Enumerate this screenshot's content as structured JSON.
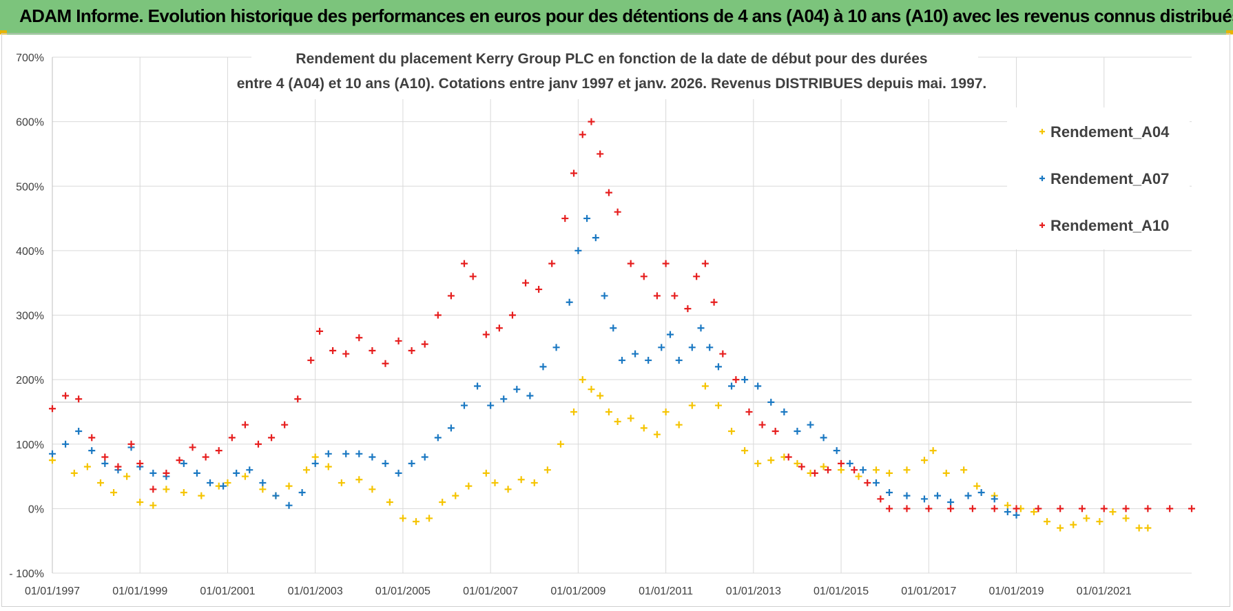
{
  "banner": {
    "title": "ADAM Informe. Evolution historique des performances en euros pour des détentions de 4 ans (A04) à 10 ans (A10) avec les revenus connus distribués"
  },
  "chart_data": {
    "type": "scatter",
    "title_line1": "Rendement du placement Kerry Group PLC en fonction de la date de début pour des durées",
    "title_line2": "entre 4 (A04) et 10 ans (A10).  Cotations entre janv 1997 et janv. 2026. Revenus DISTRIBUES depuis mai. 1997.",
    "ylim": [
      -100,
      700
    ],
    "xlim": [
      1997.0,
      2023.0
    ],
    "y_ticks": [
      {
        "value": 700,
        "label": "700%"
      },
      {
        "value": 600,
        "label": "600%"
      },
      {
        "value": 500,
        "label": "500%"
      },
      {
        "value": 400,
        "label": "400%"
      },
      {
        "value": 300,
        "label": "300%"
      },
      {
        "value": 200,
        "label": "200%"
      },
      {
        "value": 100,
        "label": "100%"
      },
      {
        "value": 0,
        "label": "0%"
      },
      {
        "value": -100,
        "label": "- 100%"
      }
    ],
    "x_ticks": [
      {
        "value": 1997,
        "label": "01/01/1997"
      },
      {
        "value": 1999,
        "label": "01/01/1999"
      },
      {
        "value": 2001,
        "label": "01/01/2001"
      },
      {
        "value": 2003,
        "label": "01/01/2003"
      },
      {
        "value": 2005,
        "label": "01/01/2005"
      },
      {
        "value": 2007,
        "label": "01/01/2007"
      },
      {
        "value": 2009,
        "label": "01/01/2009"
      },
      {
        "value": 2011,
        "label": "01/01/2011"
      },
      {
        "value": 2013,
        "label": "01/01/2013"
      },
      {
        "value": 2015,
        "label": "01/01/2015"
      },
      {
        "value": 2017,
        "label": "01/01/2017"
      },
      {
        "value": 2019,
        "label": "01/01/2019"
      },
      {
        "value": 2021,
        "label": "01/01/2021"
      }
    ],
    "legend_position": "top-right",
    "series": [
      {
        "name": "Rendement_A04",
        "color": "#f5c400",
        "points": [
          [
            1997.0,
            75
          ],
          [
            1997.5,
            55
          ],
          [
            1997.8,
            65
          ],
          [
            1998.1,
            40
          ],
          [
            1998.4,
            25
          ],
          [
            1998.7,
            50
          ],
          [
            1999.0,
            10
          ],
          [
            1999.3,
            5
          ],
          [
            1999.6,
            30
          ],
          [
            2000.0,
            25
          ],
          [
            2000.4,
            20
          ],
          [
            2000.8,
            35
          ],
          [
            2001.0,
            40
          ],
          [
            2001.4,
            50
          ],
          [
            2001.8,
            30
          ],
          [
            2002.1,
            20
          ],
          [
            2002.4,
            35
          ],
          [
            2002.8,
            60
          ],
          [
            2003.0,
            80
          ],
          [
            2003.3,
            65
          ],
          [
            2003.6,
            40
          ],
          [
            2004.0,
            45
          ],
          [
            2004.3,
            30
          ],
          [
            2004.7,
            10
          ],
          [
            2005.0,
            -15
          ],
          [
            2005.3,
            -20
          ],
          [
            2005.6,
            -15
          ],
          [
            2005.9,
            10
          ],
          [
            2006.2,
            20
          ],
          [
            2006.5,
            35
          ],
          [
            2006.9,
            55
          ],
          [
            2007.1,
            40
          ],
          [
            2007.4,
            30
          ],
          [
            2007.7,
            45
          ],
          [
            2008.0,
            40
          ],
          [
            2008.3,
            60
          ],
          [
            2008.6,
            100
          ],
          [
            2008.9,
            150
          ],
          [
            2009.1,
            200
          ],
          [
            2009.3,
            185
          ],
          [
            2009.5,
            175
          ],
          [
            2009.7,
            150
          ],
          [
            2009.9,
            135
          ],
          [
            2010.2,
            140
          ],
          [
            2010.5,
            125
          ],
          [
            2010.8,
            115
          ],
          [
            2011.0,
            150
          ],
          [
            2011.3,
            130
          ],
          [
            2011.6,
            160
          ],
          [
            2011.9,
            190
          ],
          [
            2012.2,
            160
          ],
          [
            2012.5,
            120
          ],
          [
            2012.8,
            90
          ],
          [
            2013.1,
            70
          ],
          [
            2013.4,
            75
          ],
          [
            2013.7,
            80
          ],
          [
            2014.0,
            70
          ],
          [
            2014.3,
            55
          ],
          [
            2014.6,
            65
          ],
          [
            2015.0,
            60
          ],
          [
            2015.4,
            50
          ],
          [
            2015.8,
            60
          ],
          [
            2016.1,
            55
          ],
          [
            2016.5,
            60
          ],
          [
            2016.9,
            75
          ],
          [
            2017.1,
            90
          ],
          [
            2017.4,
            55
          ],
          [
            2017.8,
            60
          ],
          [
            2018.1,
            35
          ],
          [
            2018.5,
            20
          ],
          [
            2018.8,
            5
          ],
          [
            2019.1,
            0
          ],
          [
            2019.4,
            -5
          ],
          [
            2019.7,
            -20
          ],
          [
            2020.0,
            -30
          ],
          [
            2020.3,
            -25
          ],
          [
            2020.6,
            -15
          ],
          [
            2020.9,
            -20
          ],
          [
            2021.2,
            -5
          ],
          [
            2021.5,
            -15
          ],
          [
            2021.8,
            -30
          ],
          [
            2022.0,
            -30
          ]
        ]
      },
      {
        "name": "Rendement_A07",
        "color": "#1a78c2",
        "points": [
          [
            1997.0,
            85
          ],
          [
            1997.3,
            100
          ],
          [
            1997.6,
            120
          ],
          [
            1997.9,
            90
          ],
          [
            1998.2,
            70
          ],
          [
            1998.5,
            60
          ],
          [
            1998.8,
            95
          ],
          [
            1999.0,
            65
          ],
          [
            1999.3,
            55
          ],
          [
            1999.6,
            50
          ],
          [
            2000.0,
            70
          ],
          [
            2000.3,
            55
          ],
          [
            2000.6,
            40
          ],
          [
            2000.9,
            35
          ],
          [
            2001.2,
            55
          ],
          [
            2001.5,
            60
          ],
          [
            2001.8,
            40
          ],
          [
            2002.1,
            20
          ],
          [
            2002.4,
            5
          ],
          [
            2002.7,
            25
          ],
          [
            2003.0,
            70
          ],
          [
            2003.3,
            85
          ],
          [
            2003.7,
            85
          ],
          [
            2004.0,
            85
          ],
          [
            2004.3,
            80
          ],
          [
            2004.6,
            70
          ],
          [
            2004.9,
            55
          ],
          [
            2005.2,
            70
          ],
          [
            2005.5,
            80
          ],
          [
            2005.8,
            110
          ],
          [
            2006.1,
            125
          ],
          [
            2006.4,
            160
          ],
          [
            2006.7,
            190
          ],
          [
            2007.0,
            160
          ],
          [
            2007.3,
            170
          ],
          [
            2007.6,
            185
          ],
          [
            2007.9,
            175
          ],
          [
            2008.2,
            220
          ],
          [
            2008.5,
            250
          ],
          [
            2008.8,
            320
          ],
          [
            2009.0,
            400
          ],
          [
            2009.2,
            450
          ],
          [
            2009.4,
            420
          ],
          [
            2009.6,
            330
          ],
          [
            2009.8,
            280
          ],
          [
            2010.0,
            230
          ],
          [
            2010.3,
            240
          ],
          [
            2010.6,
            230
          ],
          [
            2010.9,
            250
          ],
          [
            2011.1,
            270
          ],
          [
            2011.3,
            230
          ],
          [
            2011.6,
            250
          ],
          [
            2011.8,
            280
          ],
          [
            2012.0,
            250
          ],
          [
            2012.2,
            220
          ],
          [
            2012.5,
            190
          ],
          [
            2012.8,
            200
          ],
          [
            2013.1,
            190
          ],
          [
            2013.4,
            165
          ],
          [
            2013.7,
            150
          ],
          [
            2014.0,
            120
          ],
          [
            2014.3,
            130
          ],
          [
            2014.6,
            110
          ],
          [
            2014.9,
            90
          ],
          [
            2015.2,
            70
          ],
          [
            2015.5,
            60
          ],
          [
            2015.8,
            40
          ],
          [
            2016.1,
            25
          ],
          [
            2016.5,
            20
          ],
          [
            2016.9,
            15
          ],
          [
            2017.2,
            20
          ],
          [
            2017.5,
            10
          ],
          [
            2017.9,
            20
          ],
          [
            2018.2,
            25
          ],
          [
            2018.5,
            15
          ],
          [
            2018.8,
            -5
          ],
          [
            2019.0,
            -10
          ]
        ]
      },
      {
        "name": "Rendement_A10",
        "color": "#e61e1e",
        "points": [
          [
            1997.0,
            155
          ],
          [
            1997.3,
            175
          ],
          [
            1997.6,
            170
          ],
          [
            1997.9,
            110
          ],
          [
            1998.2,
            80
          ],
          [
            1998.5,
            65
          ],
          [
            1998.8,
            100
          ],
          [
            1999.0,
            70
          ],
          [
            1999.3,
            30
          ],
          [
            1999.6,
            55
          ],
          [
            1999.9,
            75
          ],
          [
            2000.2,
            95
          ],
          [
            2000.5,
            80
          ],
          [
            2000.8,
            90
          ],
          [
            2001.1,
            110
          ],
          [
            2001.4,
            130
          ],
          [
            2001.7,
            100
          ],
          [
            2002.0,
            110
          ],
          [
            2002.3,
            130
          ],
          [
            2002.6,
            170
          ],
          [
            2002.9,
            230
          ],
          [
            2003.1,
            275
          ],
          [
            2003.4,
            245
          ],
          [
            2003.7,
            240
          ],
          [
            2004.0,
            265
          ],
          [
            2004.3,
            245
          ],
          [
            2004.6,
            225
          ],
          [
            2004.9,
            260
          ],
          [
            2005.2,
            245
          ],
          [
            2005.5,
            255
          ],
          [
            2005.8,
            300
          ],
          [
            2006.1,
            330
          ],
          [
            2006.4,
            380
          ],
          [
            2006.6,
            360
          ],
          [
            2006.9,
            270
          ],
          [
            2007.2,
            280
          ],
          [
            2007.5,
            300
          ],
          [
            2007.8,
            350
          ],
          [
            2008.1,
            340
          ],
          [
            2008.4,
            380
          ],
          [
            2008.7,
            450
          ],
          [
            2008.9,
            520
          ],
          [
            2009.1,
            580
          ],
          [
            2009.3,
            600
          ],
          [
            2009.5,
            550
          ],
          [
            2009.7,
            490
          ],
          [
            2009.9,
            460
          ],
          [
            2010.2,
            380
          ],
          [
            2010.5,
            360
          ],
          [
            2010.8,
            330
          ],
          [
            2011.0,
            380
          ],
          [
            2011.2,
            330
          ],
          [
            2011.5,
            310
          ],
          [
            2011.7,
            360
          ],
          [
            2011.9,
            380
          ],
          [
            2012.1,
            320
          ],
          [
            2012.3,
            240
          ],
          [
            2012.6,
            200
          ],
          [
            2012.9,
            150
          ],
          [
            2013.2,
            130
          ],
          [
            2013.5,
            120
          ],
          [
            2013.8,
            80
          ],
          [
            2014.1,
            65
          ],
          [
            2014.4,
            55
          ],
          [
            2014.7,
            60
          ],
          [
            2015.0,
            70
          ],
          [
            2015.3,
            60
          ],
          [
            2015.6,
            40
          ],
          [
            2015.9,
            15
          ],
          [
            2016.1,
            0
          ],
          [
            2016.5,
            0
          ],
          [
            2017.0,
            0
          ],
          [
            2017.5,
            0
          ],
          [
            2018.0,
            0
          ],
          [
            2018.5,
            0
          ],
          [
            2019.0,
            0
          ],
          [
            2019.5,
            0
          ],
          [
            2020.0,
            0
          ],
          [
            2020.5,
            0
          ],
          [
            2021.0,
            0
          ],
          [
            2021.5,
            0
          ],
          [
            2022.0,
            0
          ],
          [
            2022.5,
            0
          ],
          [
            2023.0,
            0
          ]
        ]
      }
    ]
  }
}
